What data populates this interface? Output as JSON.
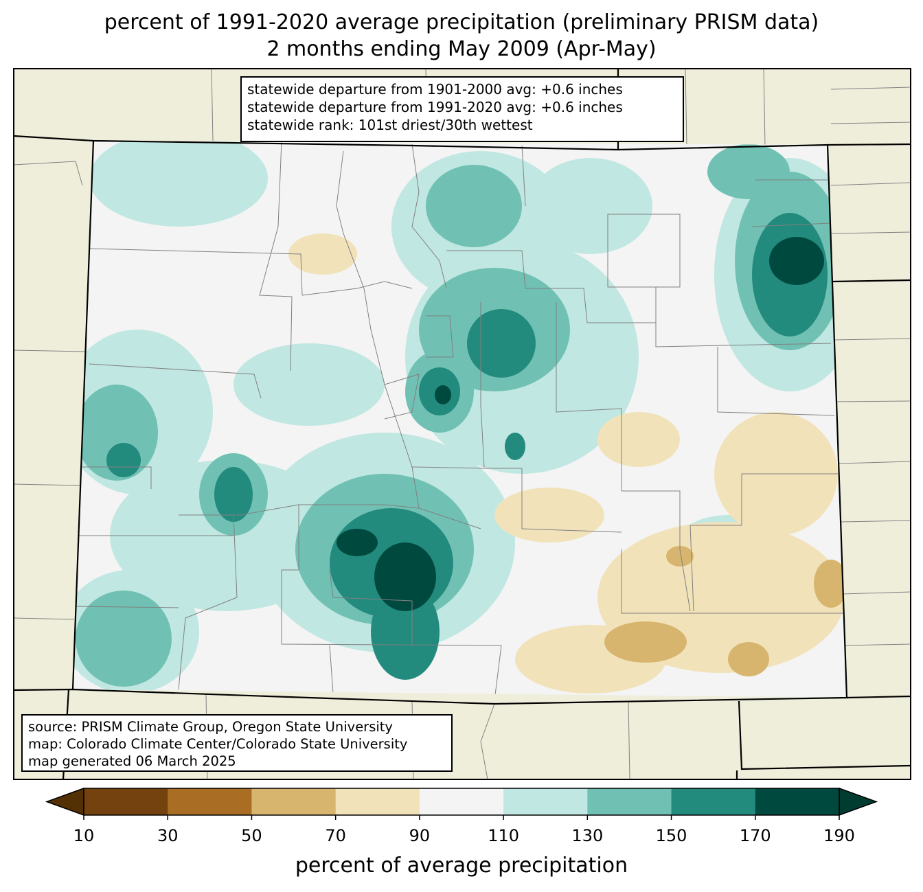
{
  "title": {
    "line1": "percent of 1991-2020 average precipitation (preliminary PRISM data)",
    "line2": "2 months ending May 2009 (Apr-May)"
  },
  "stats": {
    "line1": "statewide departure from 1901-2000 avg: +0.6 inches",
    "line2": "statewide departure from 1991-2020 avg: +0.6 inches",
    "line3": "statewide rank: 101st driest/30th wettest"
  },
  "source": {
    "line1": "source: PRISM Climate Group, Oregon State University",
    "line2": "map: Colorado Climate Center/Colorado State University",
    "line3": "map generated 06 March 2025"
  },
  "colorbar": {
    "label": "percent of average precipitation",
    "ticks": [
      "10",
      "30",
      "50",
      "70",
      "90",
      "110",
      "130",
      "150",
      "170",
      "190"
    ],
    "colors": [
      "#73420f",
      "#a96e24",
      "#d8b56e",
      "#f2e2ba",
      "#f3f4f3",
      "#c0e7e1",
      "#70c1b3",
      "#238a7e",
      "#00493f"
    ],
    "under_color": "#543005",
    "over_color": "#003c30"
  },
  "colors": {
    "land_outside": "#efeedb",
    "county_lines": "#808080",
    "state_lines": "#000000"
  }
}
